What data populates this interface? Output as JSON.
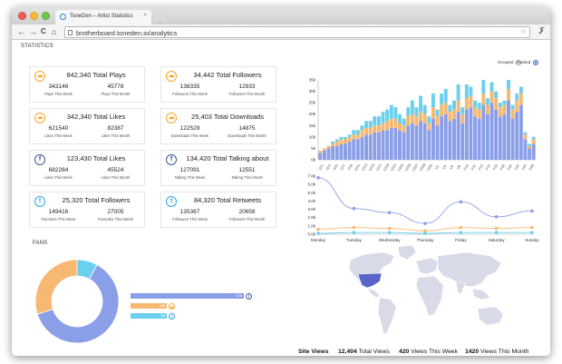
{
  "browser": {
    "tab_title": "ToneDen – Artist Statistics",
    "tab_close": "×",
    "url": "brotherboard.toneden.io/analytics",
    "back": "←",
    "forward": "→",
    "reload": "C",
    "home": "⌂",
    "star": "☆",
    "wrench": "🔧"
  },
  "statistics_title": "STATISTICS",
  "fans_title": "FANS",
  "cards": [
    {
      "icon": "soundcloud-icon",
      "icon_glyph": "☁",
      "color": "#f5a623",
      "title": "842,340 Total Plays",
      "left_value": "343146",
      "left_label": "Plays This Week",
      "right_value": "45778",
      "right_label": "Plays This Month"
    },
    {
      "icon": "soundcloud-icon",
      "icon_glyph": "☁",
      "color": "#f5a623",
      "title": "34,442 Total Followers",
      "left_value": "138335",
      "left_label": "Followers This Week",
      "right_value": "12933",
      "right_label": "Followers This Month"
    },
    {
      "icon": "soundcloud-icon",
      "icon_glyph": "☁",
      "color": "#f5a623",
      "title": "342,340 Total Likes",
      "left_value": "621540",
      "left_label": "Likes This Week",
      "right_value": "82387",
      "right_label": "Likes This Month"
    },
    {
      "icon": "soundcloud-icon",
      "icon_glyph": "☁",
      "color": "#f5a623",
      "title": "25,403 Total Downloads",
      "left_value": "122529",
      "left_label": "Downloads This Week",
      "right_value": "14875",
      "right_label": "Downloads This Month"
    },
    {
      "icon": "facebook-icon",
      "icon_glyph": "f",
      "color": "#3b5998",
      "title": "123,430 Total Likes",
      "left_value": "682284",
      "left_label": "Likes This Week",
      "right_value": "45524",
      "right_label": "Likes This Month"
    },
    {
      "icon": "facebook-icon",
      "icon_glyph": "f",
      "color": "#3b5998",
      "title": "134,420 Total Talking about",
      "left_value": "127091",
      "left_label": "Talking This Week",
      "right_value": "12551",
      "right_label": "Talking This Month"
    },
    {
      "icon": "twitter-icon",
      "icon_glyph": "t",
      "color": "#2aa9e0",
      "title": "25,320 Total Followers",
      "left_value": "149416",
      "left_label": "Favorites This Week",
      "right_value": "27005",
      "right_label": "Favorites This Month"
    },
    {
      "icon": "twitter-icon",
      "icon_glyph": "t",
      "color": "#2aa9e0",
      "title": "84,320 Total Retweets",
      "left_value": "135367",
      "left_label": "Followers This Week",
      "right_value": "20658",
      "right_label": "Followers This Month"
    }
  ],
  "bar_mode": {
    "grouped": "Grouped",
    "stacked": "Stacked",
    "selected": "stacked"
  },
  "colors": {
    "blue": "#8b9ee8",
    "orange": "#f7b871",
    "cyan": "#6bd0ee",
    "facebook": "#3b5998",
    "soundcloud": "#f5a623",
    "twitter": "#2aa9e0",
    "map_land": "#d9dae8",
    "map_highlight": "#5a64c8"
  },
  "chart_data": [
    {
      "type": "bar",
      "stacked": true,
      "ylim": [
        0,
        35
      ],
      "y_ticks": [
        "0k",
        "5k",
        "10k",
        "15k",
        "20k",
        "25k",
        "30k",
        "35k"
      ],
      "categories": [
        "11/1",
        "11/2",
        "11/3",
        "11/4",
        "11/5",
        "11/6",
        "11/7",
        "11/8",
        "11/9",
        "11/10",
        "11/11",
        "11/12",
        "11/13",
        "11/14",
        "11/15",
        "11/16",
        "11/17",
        "11/18",
        "11/19",
        "11/20",
        "11/21",
        "11/22",
        "11/23",
        "11/24",
        "11/25",
        "11/26",
        "11/27",
        "11/28",
        "11/29",
        "11/30",
        "12/1",
        "12/2",
        "12/3",
        "12/4",
        "12/5",
        "12/6",
        "12/7",
        "12/8",
        "12/9",
        "12/10",
        "12/11",
        "12/12",
        "12/13",
        "12/14",
        "12/15",
        "12/16",
        "12/17",
        "12/18",
        "12/19",
        "12/20",
        "12/21",
        "12/22"
      ],
      "x_tick_labels": [
        "12/1",
        "12/3",
        "12/5",
        "12/7",
        "12/9",
        "12/11",
        "12/13",
        "12/15",
        "12/17",
        "12/19",
        "12/21",
        "12/23",
        "12/25",
        "12/27",
        "12/29",
        "12/31",
        "1/2",
        "1/4",
        "1/6",
        "1/8",
        "1/10",
        "1/12",
        "1/14",
        "1/16",
        "1/18",
        "1/20",
        "1/22",
        "1/24",
        "1/26",
        "1/28"
      ],
      "series": [
        {
          "values": [
            3,
            4,
            5,
            6,
            6,
            7,
            7,
            8,
            9,
            9,
            10,
            11,
            11,
            12,
            12,
            13,
            13,
            14,
            14,
            13,
            12,
            15,
            16,
            15,
            17,
            16,
            13,
            18,
            15,
            19,
            20,
            17,
            18,
            21,
            16,
            22,
            23,
            19,
            18,
            24,
            20,
            25,
            22,
            19,
            20,
            26,
            18,
            21,
            24,
            9,
            5,
            7
          ]
        },
        {
          "values": [
            1,
            1,
            1,
            1,
            2,
            2,
            2,
            2,
            2,
            2,
            3,
            3,
            3,
            3,
            3,
            3,
            4,
            4,
            4,
            3,
            3,
            4,
            4,
            4,
            4,
            4,
            3,
            5,
            4,
            5,
            5,
            4,
            4,
            5,
            4,
            5,
            5,
            4,
            4,
            5,
            4,
            5,
            5,
            4,
            4,
            5,
            4,
            5,
            5,
            2,
            1,
            2
          ]
        },
        {
          "values": [
            0,
            0,
            0,
            1,
            1,
            1,
            1,
            1,
            2,
            2,
            2,
            3,
            3,
            4,
            4,
            5,
            5,
            6,
            5,
            4,
            3,
            4,
            6,
            4,
            7,
            4,
            3,
            6,
            3,
            5,
            6,
            3,
            4,
            7,
            3,
            6,
            4,
            3,
            3,
            6,
            3,
            4,
            3,
            2,
            2,
            4,
            2,
            3,
            3,
            1,
            1,
            1
          ]
        }
      ]
    },
    {
      "type": "line",
      "x": [
        "Monday",
        "Tuesday",
        "Wednesday",
        "Thursday",
        "Friday",
        "Saturday",
        "Sunday"
      ],
      "ylim": [
        0,
        7
      ],
      "y_ticks": [
        "0.0k",
        "1.0k",
        "2.0k",
        "3.0k",
        "4.0k",
        "5.0k",
        "6.0k",
        "7.0k"
      ],
      "series": [
        {
          "values": [
            6.8,
            3.1,
            2.6,
            1.3,
            3.9,
            2.1,
            2.8
          ]
        },
        {
          "values": [
            0.6,
            0.8,
            0.7,
            0.4,
            0.8,
            0.7,
            0.8
          ]
        },
        {
          "values": [
            0.1,
            0.2,
            0.2,
            0.1,
            0.2,
            0.2,
            0.2
          ]
        }
      ]
    },
    {
      "type": "pie",
      "donut": true,
      "values": [
        62,
        30,
        8
      ]
    },
    {
      "type": "bar",
      "orientation": "horizontal",
      "values": [
        576,
        133,
        58
      ],
      "labels": [
        "576",
        "133",
        "58"
      ],
      "icons": [
        "facebook-icon",
        "soundcloud-icon",
        "twitter-icon"
      ]
    }
  ],
  "site_views": {
    "label": "Site Views",
    "total_value": "12,404",
    "total_label": "Total Views",
    "week_value": "420",
    "week_label": "Views This Week",
    "month_value": "1420",
    "month_label": "Views This Month"
  }
}
